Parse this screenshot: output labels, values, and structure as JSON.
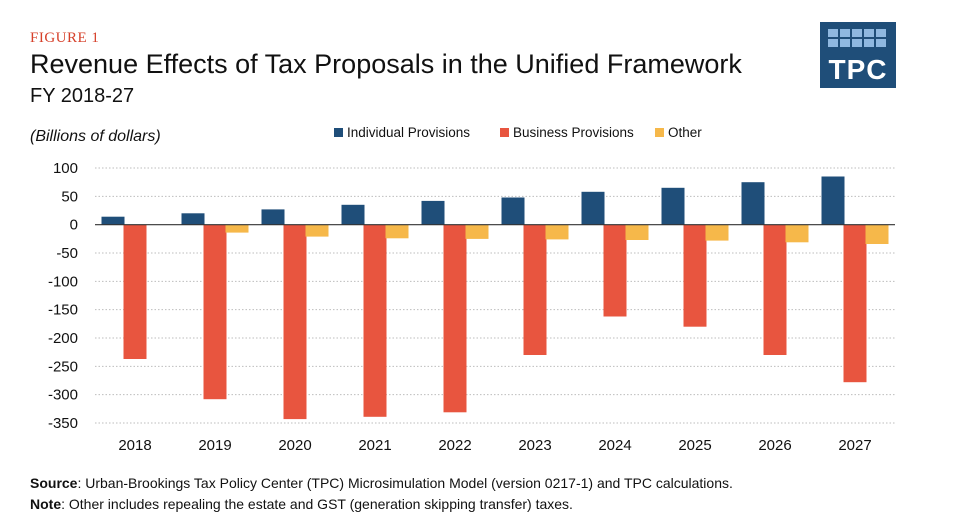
{
  "header": {
    "figure_label": "FIGURE 1",
    "title": "Revenue Effects of Tax Proposals in the Unified Framework",
    "subtitle": "FY 2018-27",
    "logo_text": "TPC"
  },
  "colors": {
    "individual": "#1f4e79",
    "business": "#e8553f",
    "other": "#f6b84a",
    "gridline": "#bdbdbd",
    "figure_label": "#d6402a"
  },
  "chart_data": {
    "type": "bar",
    "unit_label": "(Billions of dollars)",
    "categories": [
      "2018",
      "2019",
      "2020",
      "2021",
      "2022",
      "2023",
      "2024",
      "2025",
      "2026",
      "2027"
    ],
    "series": [
      {
        "name": "Individual Provisions",
        "values": [
          14,
          20,
          27,
          35,
          42,
          48,
          58,
          65,
          75,
          85
        ]
      },
      {
        "name": "Business Provisions",
        "values": [
          -237,
          -308,
          -343,
          -339,
          -331,
          -230,
          -162,
          -180,
          -230,
          -278
        ]
      },
      {
        "name": "Other",
        "values": [
          0,
          -14,
          -21,
          -24,
          -25,
          -26,
          -27,
          -28,
          -31,
          -34
        ]
      }
    ],
    "ylim": [
      -350,
      100
    ],
    "yticks": [
      100,
      50,
      0,
      -50,
      -100,
      -150,
      -200,
      -250,
      -300,
      -350
    ],
    "ytick_labels": [
      "100",
      "50",
      "0",
      "-50",
      "-100",
      "-150",
      "-200",
      "-250",
      "-300",
      "-350"
    ],
    "legend_position": "top",
    "grid": true
  },
  "footer": {
    "source_label": "Source",
    "source_text": ": Urban-Brookings Tax Policy Center (TPC) Microsimulation Model (version 0217-1) and TPC calculations.",
    "note_label": "Note",
    "note_text": ": Other includes repealing the estate and GST (generation skipping transfer) taxes."
  }
}
